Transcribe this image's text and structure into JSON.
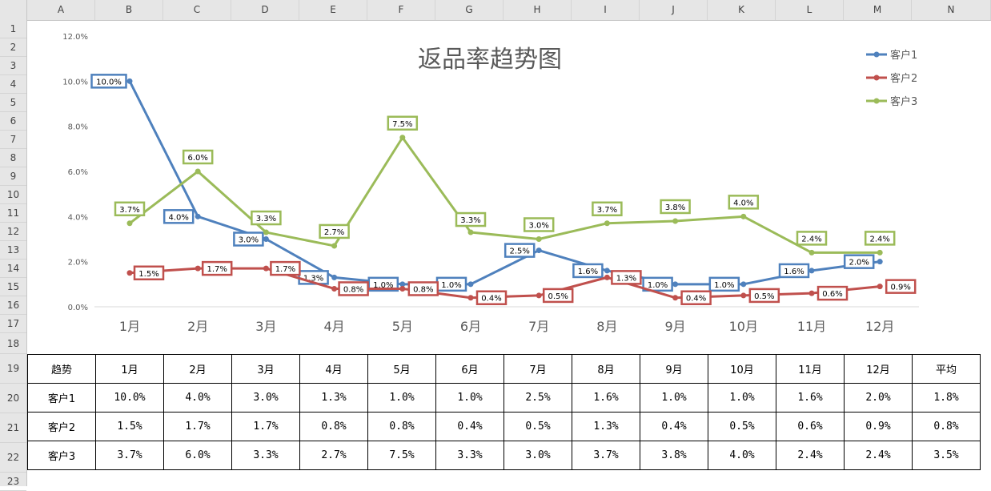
{
  "sheet": {
    "columns": [
      "A",
      "B",
      "C",
      "D",
      "E",
      "F",
      "G",
      "H",
      "I",
      "J",
      "K",
      "L",
      "M",
      "N"
    ],
    "rows": [
      "1",
      "2",
      "3",
      "4",
      "5",
      "6",
      "7",
      "8",
      "9",
      "10",
      "11",
      "12",
      "13",
      "14",
      "15",
      "16",
      "17",
      "18",
      "19",
      "20",
      "21",
      "22",
      "23"
    ]
  },
  "colors": {
    "客户1": "#4f81bd",
    "客户2": "#c0504d",
    "客户3": "#9bbb59"
  },
  "chart_data": {
    "type": "line",
    "title": "返品率趋势图",
    "categories": [
      "1月",
      "2月",
      "3月",
      "4月",
      "5月",
      "6月",
      "7月",
      "8月",
      "9月",
      "10月",
      "11月",
      "12月"
    ],
    "series": [
      {
        "name": "客户1",
        "values": [
          10.0,
          4.0,
          3.0,
          1.3,
          1.0,
          1.0,
          2.5,
          1.6,
          1.0,
          1.0,
          1.6,
          2.0
        ],
        "labels": [
          "10.0%",
          "4.0%",
          "3.0%",
          "1.3%",
          "1.0%",
          "1.0%",
          "2.5%",
          "1.6%",
          "1.0%",
          "1.0%",
          "1.6%",
          "2.0%"
        ]
      },
      {
        "name": "客户2",
        "values": [
          1.5,
          1.7,
          1.7,
          0.8,
          0.8,
          0.4,
          0.5,
          1.3,
          0.4,
          0.5,
          0.6,
          0.9
        ],
        "labels": [
          "1.5%",
          "1.7%",
          "1.7%",
          "0.8%",
          "0.8%",
          "0.4%",
          "0.5%",
          "1.3%",
          "0.4%",
          "0.5%",
          "0.6%",
          "0.9%"
        ]
      },
      {
        "name": "客户3",
        "values": [
          3.7,
          6.0,
          3.3,
          2.7,
          7.5,
          3.3,
          3.0,
          3.7,
          3.8,
          4.0,
          2.4,
          2.4
        ],
        "labels": [
          "3.7%",
          "6.0%",
          "3.3%",
          "2.7%",
          "7.5%",
          "3.3%",
          "3.0%",
          "3.7%",
          "3.8%",
          "4.0%",
          "2.4%",
          "2.4%"
        ]
      }
    ],
    "yticks": [
      "0.0%",
      "2.0%",
      "4.0%",
      "6.0%",
      "8.0%",
      "10.0%",
      "12.0%"
    ],
    "ylim": [
      0,
      12
    ],
    "legend": "top-right",
    "grid": false
  },
  "table": {
    "header": [
      "趋势",
      "1月",
      "2月",
      "3月",
      "4月",
      "5月",
      "6月",
      "7月",
      "8月",
      "9月",
      "10月",
      "11月",
      "12月",
      "平均"
    ],
    "rows": [
      [
        "客户1",
        "10.0%",
        "4.0%",
        "3.0%",
        "1.3%",
        "1.0%",
        "1.0%",
        "2.5%",
        "1.6%",
        "1.0%",
        "1.0%",
        "1.6%",
        "2.0%",
        "1.8%"
      ],
      [
        "客户2",
        "1.5%",
        "1.7%",
        "1.7%",
        "0.8%",
        "0.8%",
        "0.4%",
        "0.5%",
        "1.3%",
        "0.4%",
        "0.5%",
        "0.6%",
        "0.9%",
        "0.8%"
      ],
      [
        "客户3",
        "3.7%",
        "6.0%",
        "3.3%",
        "2.7%",
        "7.5%",
        "3.3%",
        "3.0%",
        "3.7%",
        "3.8%",
        "4.0%",
        "2.4%",
        "2.4%",
        "3.5%"
      ]
    ]
  }
}
